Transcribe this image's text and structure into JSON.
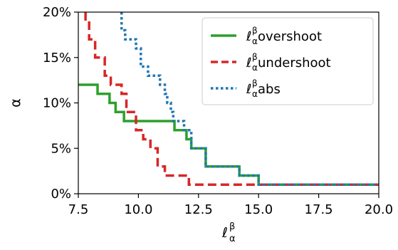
{
  "chart_data": {
    "type": "line",
    "xlabel": "ℓ",
    "xlabel_sub": "α",
    "xlabel_sup": "β",
    "ylabel": "α",
    "xlim": [
      7.5,
      20.0
    ],
    "ylim": [
      0,
      20
    ],
    "xticks": [
      7.5,
      10.0,
      12.5,
      15.0,
      17.5,
      20.0
    ],
    "xtick_labels": [
      "7.5",
      "10.0",
      "12.5",
      "15.0",
      "17.5",
      "20.0"
    ],
    "yticks": [
      0,
      5,
      10,
      15,
      20
    ],
    "ytick_labels": [
      "0%",
      "5%",
      "10%",
      "15%",
      "20%"
    ],
    "grid": false,
    "legend_position": "top-right",
    "series": [
      {
        "name": "ℓ overshoot",
        "name_base": "ℓ",
        "name_sub": "α",
        "name_sup": "β",
        "name_rest": " overshoot",
        "color": "#2ca02c",
        "dash": "solid",
        "x": [
          7.5,
          8.3,
          8.3,
          8.8,
          8.8,
          9.05,
          9.05,
          9.4,
          9.4,
          11.5,
          11.5,
          12.0,
          12.0,
          12.2,
          12.2,
          12.8,
          12.8,
          14.2,
          14.2,
          15.0,
          15.0,
          20.0
        ],
        "y": [
          12,
          12,
          11,
          11,
          10,
          10,
          9,
          9,
          8,
          8,
          7,
          7,
          6,
          6,
          5,
          5,
          3,
          3,
          2,
          2,
          1,
          1
        ]
      },
      {
        "name": "ℓ undershoot",
        "name_base": "ℓ",
        "name_sub": "α",
        "name_sup": "β",
        "name_rest": " undershoot",
        "color": "#d62728",
        "dash": "dashed",
        "x": [
          7.8,
          7.8,
          7.95,
          7.95,
          8.2,
          8.2,
          8.6,
          8.6,
          8.85,
          8.85,
          9.3,
          9.3,
          9.5,
          9.5,
          9.9,
          9.9,
          10.2,
          10.2,
          10.5,
          10.5,
          10.8,
          10.8,
          11.1,
          11.1,
          11.4,
          11.4,
          12.1,
          12.1,
          20.0
        ],
        "y": [
          20,
          19,
          19,
          17,
          17,
          15,
          15,
          13,
          13,
          12,
          12,
          11,
          11,
          9,
          9,
          7,
          7,
          6,
          6,
          5,
          5,
          3,
          3,
          2,
          2,
          2,
          2,
          1,
          1
        ]
      },
      {
        "name": "ℓ abs",
        "name_base": "ℓ",
        "name_sub": "α",
        "name_sup": "β",
        "name_rest": " abs",
        "color": "#1f77b4",
        "dash": "dotted",
        "x": [
          9.3,
          9.3,
          9.45,
          9.45,
          9.9,
          9.9,
          10.1,
          10.1,
          10.4,
          10.4,
          10.9,
          10.9,
          11.1,
          11.1,
          11.2,
          11.2,
          11.35,
          11.35,
          11.45,
          11.45,
          11.9,
          11.9,
          12.2,
          12.2,
          12.8,
          12.8,
          14.2,
          14.2,
          15.0,
          15.0,
          20.0
        ],
        "y": [
          20,
          18,
          18,
          17,
          17,
          16,
          16,
          14,
          14,
          13,
          13,
          12,
          12,
          11,
          11,
          10,
          10,
          9,
          9,
          8,
          8,
          7,
          7,
          5,
          5,
          3,
          3,
          2,
          2,
          1,
          1
        ]
      }
    ]
  }
}
